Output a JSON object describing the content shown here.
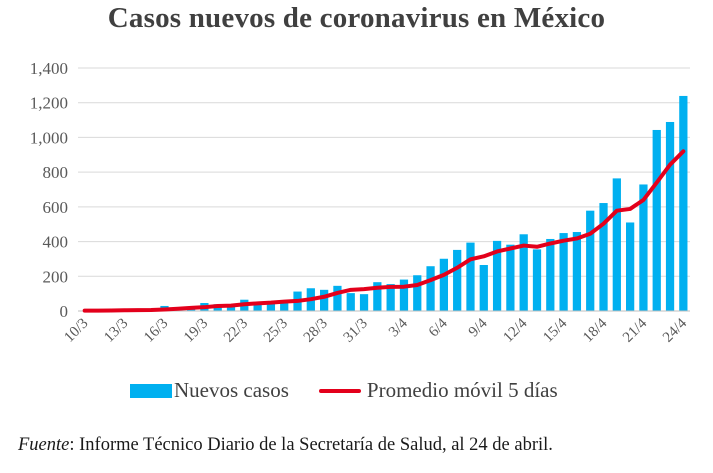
{
  "chart_data": {
    "type": "bar",
    "title": "Casos nuevos de coronavirus en México",
    "xlabel": "",
    "ylabel": "",
    "ylim": [
      0,
      1400
    ],
    "yticks": [
      0,
      200,
      400,
      600,
      800,
      1000,
      1200,
      1400
    ],
    "ytick_labels": [
      "0",
      "200",
      "400",
      "600",
      "800",
      "1,000",
      "1,200",
      "1,400"
    ],
    "grid": true,
    "legend_position": "bottom",
    "categories": [
      "10/3",
      "11/3",
      "12/3",
      "13/3",
      "14/3",
      "15/3",
      "16/3",
      "17/3",
      "18/3",
      "19/3",
      "20/3",
      "21/3",
      "22/3",
      "23/3",
      "24/3",
      "25/3",
      "26/3",
      "27/3",
      "28/3",
      "29/3",
      "30/3",
      "31/3",
      "1/4",
      "2/4",
      "3/4",
      "4/4",
      "5/4",
      "6/4",
      "7/4",
      "8/4",
      "9/4",
      "10/4",
      "11/4",
      "12/4",
      "13/4",
      "14/4",
      "15/4",
      "16/4",
      "17/4",
      "18/4",
      "19/4",
      "20/4",
      "21/4",
      "22/4",
      "23/4",
      "24/4"
    ],
    "xtick_labels": [
      "10/3",
      "",
      "",
      "13/3",
      "",
      "",
      "16/3",
      "",
      "",
      "19/3",
      "",
      "",
      "22/3",
      "",
      "",
      "25/3",
      "",
      "",
      "28/3",
      "",
      "",
      "31/3",
      "",
      "",
      "3/4",
      "",
      "",
      "6/4",
      "",
      "",
      "9/4",
      "",
      "",
      "12/4",
      "",
      "",
      "15/4",
      "",
      "",
      "18/4",
      "",
      "",
      "21/4",
      "",
      "",
      "24/4"
    ],
    "series": [
      {
        "name": "Nuevos casos",
        "type": "bar",
        "color": "#00b0f0",
        "values": [
          2,
          3,
          3,
          4,
          10,
          12,
          29,
          11,
          25,
          46,
          39,
          39,
          65,
          51,
          52,
          61,
          112,
          131,
          122,
          145,
          103,
          97,
          166,
          155,
          181,
          206,
          258,
          301,
          352,
          394,
          265,
          404,
          382,
          442,
          355,
          415,
          449,
          455,
          578,
          622,
          764,
          510,
          729,
          1043,
          1089,
          1239
        ]
      },
      {
        "name": "Promedio móvil 5 días",
        "type": "line",
        "color": "#e3001b",
        "values": [
          2,
          2,
          3,
          4,
          5,
          6,
          9,
          13,
          18,
          22,
          29,
          31,
          39,
          44,
          48,
          54,
          58,
          68,
          82,
          104,
          122,
          126,
          134,
          139,
          140,
          150,
          178,
          208,
          249,
          298,
          315,
          343,
          360,
          377,
          370,
          389,
          405,
          418,
          445,
          503,
          578,
          588,
          640,
          740,
          843,
          920
        ]
      }
    ]
  },
  "legend": {
    "bar_label": "Nuevos casos",
    "line_label": "Promedio móvil 5 días"
  },
  "source": {
    "label": "Fuente",
    "text": ": Informe Técnico Diario de la Secretaría de Salud, al 24 de abril."
  }
}
